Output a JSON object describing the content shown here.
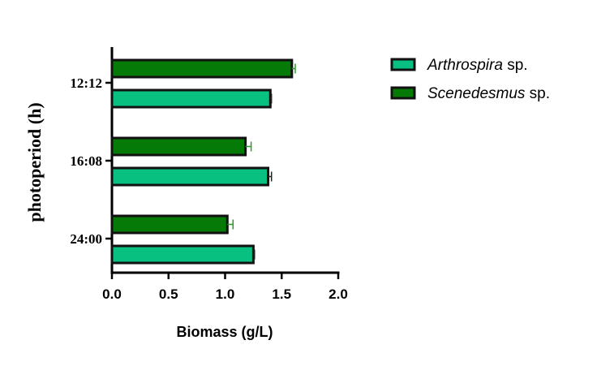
{
  "chart_data": {
    "type": "bar",
    "orientation": "horizontal",
    "title": "",
    "xlabel": "Biomass (g/L)",
    "ylabel": "photoperiod (h)",
    "xlim": [
      0,
      2.0
    ],
    "xticks": [
      "0.0",
      "0.5",
      "1.0",
      "1.5",
      "2.0"
    ],
    "categories": [
      "12:12",
      "16:08",
      "24:00"
    ],
    "legend_position": "right",
    "grid": false,
    "series": [
      {
        "name": "Arthrospira",
        "suffix": "sp.",
        "color": "#08c07f",
        "errcolor": "#222222",
        "values": [
          1.4,
          1.38,
          1.25
        ],
        "errors": [
          0.01,
          0.03,
          0.01
        ]
      },
      {
        "name": "Scenedesmus",
        "suffix": "sp.",
        "color": "#067a06",
        "errcolor": "#2a9a2a",
        "values": [
          1.59,
          1.18,
          1.02
        ],
        "errors": [
          0.03,
          0.05,
          0.05
        ]
      }
    ]
  }
}
